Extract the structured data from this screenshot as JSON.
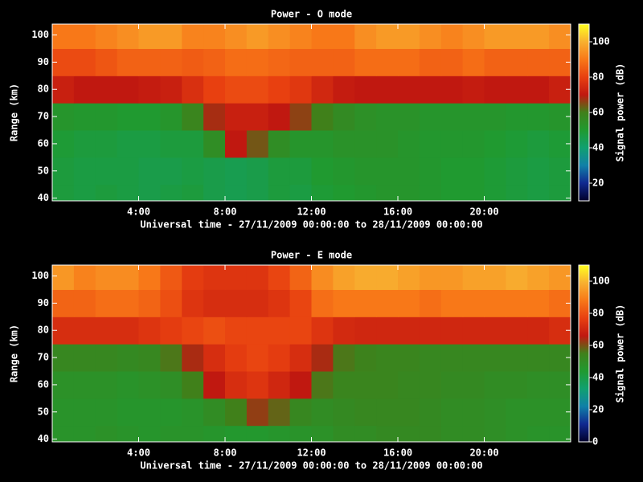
{
  "chart_data": [
    {
      "type": "heatmap",
      "title": "Power - O mode",
      "xlabel": "Universal time - 27/11/2009 00:00:00 to 28/11/2009 00:00:00",
      "ylabel": "Range (km)",
      "colorbar_label": "Signal power (dB)",
      "x_bins": [
        0,
        1,
        2,
        3,
        4,
        5,
        6,
        7,
        8,
        9,
        10,
        11,
        12,
        13,
        14,
        15,
        16,
        17,
        18,
        19,
        20,
        21,
        22,
        23,
        24
      ],
      "y_bins": [
        39,
        45,
        55,
        65,
        75,
        85,
        95,
        104
      ],
      "values": [
        [
          48,
          47,
          48,
          47,
          46,
          47,
          48,
          46,
          45,
          46,
          48,
          47,
          49,
          50,
          51,
          52,
          52,
          51,
          50,
          50,
          49,
          48,
          47,
          48
        ],
        [
          48,
          47,
          47,
          47,
          46,
          46,
          47,
          46,
          45,
          46,
          48,
          48,
          50,
          51,
          52,
          52,
          52,
          51,
          50,
          50,
          49,
          48,
          47,
          48
        ],
        [
          49,
          48,
          48,
          47,
          47,
          48,
          48,
          55,
          70,
          64,
          55,
          52,
          52,
          53,
          53,
          53,
          52,
          51,
          51,
          51,
          50,
          49,
          48,
          49
        ],
        [
          52,
          51,
          51,
          50,
          50,
          52,
          58,
          68,
          72,
          72,
          70,
          66,
          60,
          56,
          54,
          53,
          53,
          52,
          52,
          52,
          52,
          51,
          51,
          52
        ],
        [
          72,
          70,
          70,
          70,
          71,
          72,
          76,
          80,
          82,
          82,
          80,
          78,
          74,
          71,
          70,
          70,
          70,
          70,
          70,
          71,
          70,
          70,
          70,
          72
        ],
        [
          82,
          82,
          84,
          86,
          86,
          86,
          85,
          86,
          88,
          88,
          87,
          86,
          86,
          86,
          88,
          88,
          88,
          86,
          86,
          88,
          86,
          86,
          86,
          86
        ],
        [
          90,
          90,
          92,
          94,
          96,
          96,
          92,
          92,
          94,
          96,
          94,
          92,
          90,
          90,
          94,
          96,
          96,
          94,
          92,
          94,
          96,
          96,
          96,
          94
        ]
      ],
      "xlim": [
        0,
        24
      ],
      "ylim": [
        39,
        104
      ],
      "xticks": [
        {
          "value": 4,
          "label": "4:00"
        },
        {
          "value": 8,
          "label": "8:00"
        },
        {
          "value": 12,
          "label": "12:00"
        },
        {
          "value": 16,
          "label": "16:00"
        },
        {
          "value": 20,
          "label": "20:00"
        }
      ],
      "yticks": [
        40,
        50,
        60,
        70,
        80,
        90,
        100
      ],
      "clim": [
        10,
        110
      ],
      "cticks": [
        20,
        40,
        60,
        80,
        100
      ],
      "colormap": [
        "#00002a",
        "#102890",
        "#1080a8",
        "#10a070",
        "#209a30",
        "#40801a",
        "#c01810",
        "#e84010",
        "#f87818",
        "#f8b030",
        "#ffff20"
      ]
    },
    {
      "type": "heatmap",
      "title": "Power - E mode",
      "xlabel": "Universal time - 27/11/2009 00:00:00 to 28/11/2009 00:00:00",
      "ylabel": "Range (km)",
      "colorbar_label": "Signal power (dB)",
      "x_bins": [
        0,
        1,
        2,
        3,
        4,
        5,
        6,
        7,
        8,
        9,
        10,
        11,
        12,
        13,
        14,
        15,
        16,
        17,
        18,
        19,
        20,
        21,
        22,
        23,
        24
      ],
      "y_bins": [
        39,
        45,
        55,
        65,
        75,
        85,
        95,
        104
      ],
      "values": [
        [
          47,
          47,
          48,
          47,
          46,
          47,
          47,
          46,
          45,
          45,
          46,
          47,
          48,
          50,
          50,
          51,
          51,
          51,
          50,
          50,
          49,
          48,
          47,
          47
        ],
        [
          47,
          47,
          47,
          46,
          46,
          46,
          47,
          50,
          55,
          62,
          58,
          52,
          50,
          51,
          52,
          52,
          52,
          51,
          50,
          50,
          49,
          48,
          48,
          48
        ],
        [
          48,
          48,
          48,
          47,
          48,
          49,
          55,
          66,
          72,
          74,
          70,
          66,
          56,
          53,
          53,
          53,
          52,
          52,
          51,
          51,
          50,
          50,
          49,
          49
        ],
        [
          52,
          52,
          52,
          51,
          52,
          56,
          64,
          72,
          76,
          78,
          76,
          72,
          64,
          56,
          54,
          53,
          53,
          52,
          52,
          52,
          52,
          52,
          52,
          52
        ],
        [
          72,
          72,
          72,
          72,
          74,
          76,
          78,
          80,
          78,
          78,
          78,
          78,
          74,
          71,
          70,
          70,
          70,
          70,
          70,
          70,
          70,
          70,
          70,
          72
        ],
        [
          84,
          84,
          86,
          86,
          84,
          80,
          74,
          72,
          72,
          72,
          74,
          78,
          86,
          88,
          88,
          88,
          88,
          86,
          88,
          88,
          88,
          88,
          88,
          86
        ],
        [
          94,
          90,
          92,
          92,
          88,
          82,
          76,
          74,
          74,
          74,
          78,
          84,
          92,
          96,
          98,
          98,
          96,
          94,
          94,
          96,
          96,
          98,
          96,
          94
        ]
      ],
      "xlim": [
        0,
        24
      ],
      "ylim": [
        39,
        104
      ],
      "xticks": [
        {
          "value": 4,
          "label": "4:00"
        },
        {
          "value": 8,
          "label": "8:00"
        },
        {
          "value": 12,
          "label": "12:00"
        },
        {
          "value": 16,
          "label": "16:00"
        },
        {
          "value": 20,
          "label": "20:00"
        }
      ],
      "yticks": [
        40,
        50,
        60,
        70,
        80,
        90,
        100
      ],
      "clim": [
        0,
        110
      ],
      "cticks": [
        0,
        20,
        40,
        60,
        80,
        100
      ],
      "colormap": [
        "#00002a",
        "#102890",
        "#1080a8",
        "#10a070",
        "#209a30",
        "#40801a",
        "#c01810",
        "#e84010",
        "#f87818",
        "#f8b030",
        "#ffff20"
      ]
    }
  ]
}
